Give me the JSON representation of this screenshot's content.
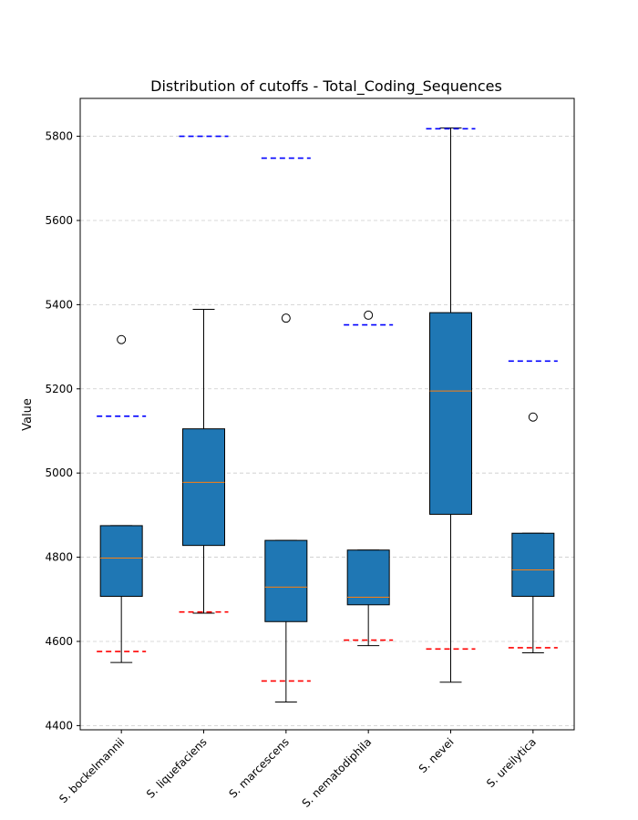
{
  "chart_data": {
    "type": "box",
    "title": "Distribution of cutoffs - Total_Coding_Sequences",
    "ylabel": "Value",
    "ylim": [
      4390,
      5890
    ],
    "yticks": [
      4400,
      4600,
      4800,
      5000,
      5200,
      5400,
      5600,
      5800
    ],
    "grid": "y-dashed",
    "categories": [
      "S. bockelmannii",
      "S. liquefaciens",
      "S. marcescens",
      "S. nematodiphila",
      "S. nevei",
      "S. ureilytica"
    ],
    "boxes": [
      {
        "whisker_low": 4550,
        "q1": 4707,
        "median": 4798,
        "q3": 4875,
        "whisker_high": 4875,
        "outliers": [
          5317
        ],
        "upper_cutoff": 5135,
        "lower_cutoff": 4576
      },
      {
        "whisker_low": 4667,
        "q1": 4828,
        "median": 4978,
        "q3": 5105,
        "whisker_high": 5389,
        "outliers": [],
        "upper_cutoff": 5800,
        "lower_cutoff": 4670
      },
      {
        "whisker_low": 4456,
        "q1": 4647,
        "median": 4729,
        "q3": 4840,
        "whisker_high": 4840,
        "outliers": [
          5368
        ],
        "upper_cutoff": 5748,
        "lower_cutoff": 4506
      },
      {
        "whisker_low": 4590,
        "q1": 4687,
        "median": 4705,
        "q3": 4817,
        "whisker_high": 4817,
        "outliers": [
          5375
        ],
        "upper_cutoff": 5352,
        "lower_cutoff": 4603
      },
      {
        "whisker_low": 4503,
        "q1": 4902,
        "median": 5195,
        "q3": 5381,
        "whisker_high": 5820,
        "outliers": [],
        "upper_cutoff": 5818,
        "lower_cutoff": 4582
      },
      {
        "whisker_low": 4573,
        "q1": 4707,
        "median": 4770,
        "q3": 4857,
        "whisker_high": 4857,
        "outliers": [
          5133
        ],
        "upper_cutoff": 5266,
        "lower_cutoff": 4585
      }
    ],
    "colors": {
      "box_fill": "#1f77b4",
      "median": "#ff7f0e",
      "upper_cutoff": "#0000ff",
      "lower_cutoff": "#ff0000",
      "grid": "#cccccc"
    }
  }
}
